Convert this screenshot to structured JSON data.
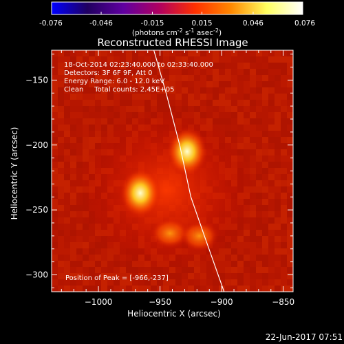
{
  "colorbar": {
    "ticks": [
      "-0.076",
      "-0.046",
      "-0.015",
      "0.015",
      "0.046",
      "0.076"
    ],
    "tick_values": [
      -0.076,
      -0.046,
      -0.015,
      0.015,
      0.046,
      0.076
    ],
    "range": [
      -0.076,
      0.076
    ],
    "label_base": "(photons cm",
    "label_exp1": "-2",
    "label_mid": " s",
    "label_exp2": "-1",
    "label_mid2": " asec",
    "label_exp3": "-2",
    "label_end": ")",
    "colormap": [
      "#0000ff",
      "#200060",
      "#6000a0",
      "#b00060",
      "#ff3000",
      "#ff8800",
      "#ffff60",
      "#ffffff"
    ]
  },
  "image_info": {
    "time_range": "18-Oct-2014 02:23:40.000 to 02:33:40.000",
    "detectors": "Detectors: 3F 6F 9F, Att 0",
    "energy_range": "Energy Range: 6.0 - 12.0 keV",
    "clean_counts": "Clean     Total counts: 2.45E+05",
    "peak_position": "Position of Peak = [-966,-237]"
  },
  "footer": {
    "date": "22-Jun-2017 07:51"
  },
  "chart_data": {
    "type": "heatmap",
    "title": "Reconstructed RHESSI Image",
    "xlabel": "Heliocentric X (arcsec)",
    "ylabel": "Heliocentric Y (arcsec)",
    "xlim": [
      -1038,
      -842
    ],
    "ylim": [
      -313,
      -127
    ],
    "x_ticks": [
      -1000,
      -950,
      -900,
      -850
    ],
    "y_ticks": [
      -150,
      -200,
      -250,
      -300
    ],
    "x_tick_labels": [
      "−1000",
      "−950",
      "−900",
      "−850"
    ],
    "y_tick_labels": [
      "−150",
      "−200",
      "−250",
      "−300"
    ],
    "sources": [
      {
        "x": -966,
        "y": -237,
        "peak": 0.076
      },
      {
        "x": -928,
        "y": -205,
        "peak": 0.066
      },
      {
        "x": -942,
        "y": -268,
        "peak": 0.05
      },
      {
        "x": -918,
        "y": -270,
        "peak": 0.042
      }
    ],
    "background_level": 0.022,
    "limb_line": [
      [
        -955,
        -127
      ],
      [
        -945,
        -160
      ],
      [
        -934,
        -200
      ],
      [
        -925,
        -240
      ],
      [
        -914,
        -270
      ],
      [
        -898,
        -313
      ]
    ]
  }
}
